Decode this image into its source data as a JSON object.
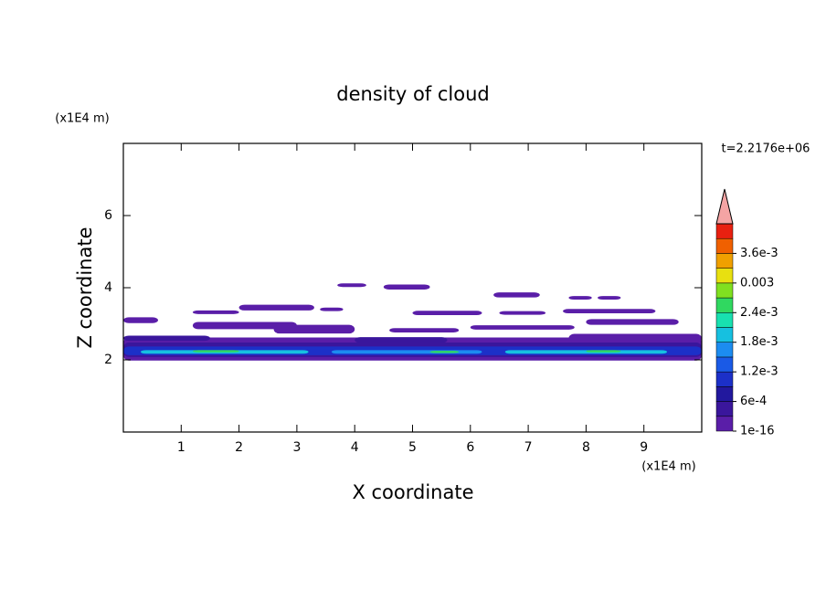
{
  "chart_data": {
    "type": "contour",
    "title": "density of cloud",
    "xlabel": "X coordinate",
    "ylabel": "Z coordinate",
    "x_unit": "(x1E4 m)",
    "y_unit": "(x1E4 m)",
    "annotation": "t=2.2176e+06",
    "xlim": [
      0,
      10
    ],
    "xticks": [
      1,
      2,
      3,
      4,
      5,
      6,
      7,
      8,
      9
    ],
    "ylim": [
      0,
      8
    ],
    "yticks": [
      2,
      4,
      6
    ],
    "colorbar": {
      "ticks": [
        {
          "value": 1e-16,
          "label": "1e-16"
        },
        {
          "value": 0.0006,
          "label": "6e-4"
        },
        {
          "value": 0.0012,
          "label": "1.2e-3"
        },
        {
          "value": 0.0018,
          "label": "1.8e-3"
        },
        {
          "value": 0.0024,
          "label": "2.4e-3"
        },
        0.003,
        {
          "value": 0.0036,
          "label": "3.6e-3"
        }
      ],
      "colors": [
        "#5a1ea8",
        "#3a169c",
        "#22189e",
        "#1c30c8",
        "#1a5ae6",
        "#1c8cf0",
        "#16c0e0",
        "#18e0b0",
        "#30d860",
        "#80e020",
        "#e8e010",
        "#f0a000",
        "#f06000",
        "#e82010"
      ],
      "extend_color": "#f4a4a4"
    }
  }
}
